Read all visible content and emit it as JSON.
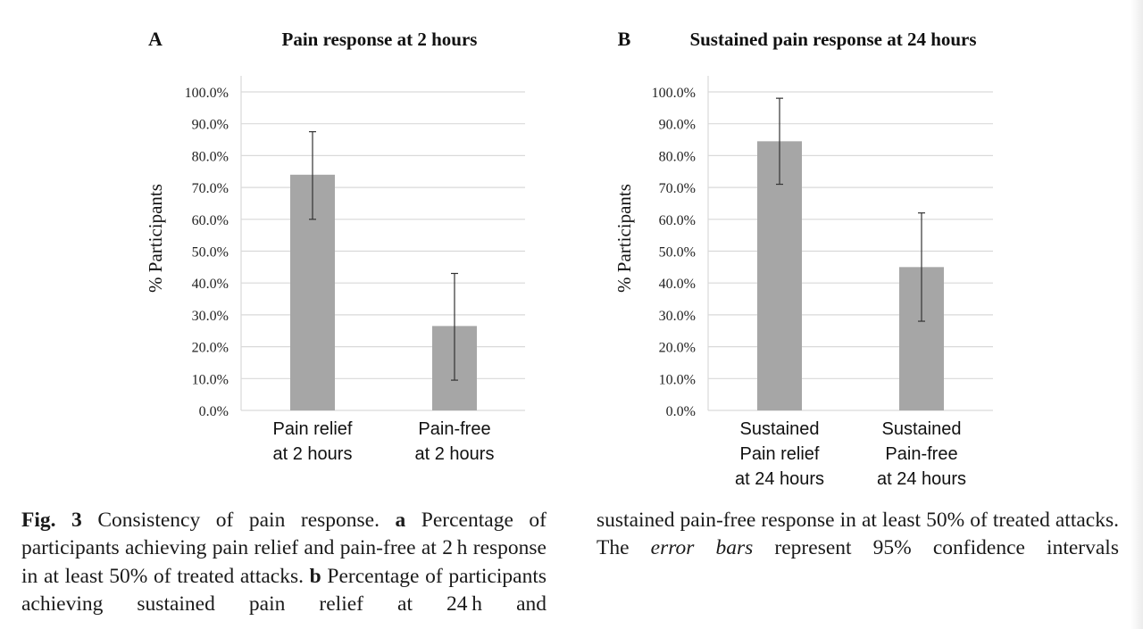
{
  "chart_data": [
    {
      "type": "bar",
      "panel_letter": "A",
      "title": "Pain response at 2 hours",
      "ylabel": "% Participants",
      "xlabel": "",
      "ylim": [
        0,
        100
      ],
      "yticks": [
        "0.0%",
        "10.0%",
        "20.0%",
        "30.0%",
        "40.0%",
        "50.0%",
        "60.0%",
        "70.0%",
        "80.0%",
        "90.0%",
        "100.0%"
      ],
      "grid": true,
      "categories": [
        [
          "Pain relief",
          "at 2 hours"
        ],
        [
          "Pain-free",
          "at 2 hours"
        ]
      ],
      "values": [
        74.0,
        26.5
      ],
      "error_low": [
        60.0,
        9.5
      ],
      "error_high": [
        87.5,
        43.0
      ],
      "bar_color": "#a6a6a6"
    },
    {
      "type": "bar",
      "panel_letter": "B",
      "title": "Sustained pain response at 24 hours",
      "ylabel": "% Participants",
      "xlabel": "",
      "ylim": [
        0,
        100
      ],
      "yticks": [
        "0.0%",
        "10.0%",
        "20.0%",
        "30.0%",
        "40.0%",
        "50.0%",
        "60.0%",
        "70.0%",
        "80.0%",
        "90.0%",
        "100.0%"
      ],
      "grid": true,
      "categories": [
        [
          "Sustained",
          "Pain relief",
          "at 24 hours"
        ],
        [
          "Sustained",
          "Pain-free",
          "at 24 hours"
        ]
      ],
      "values": [
        84.5,
        45.0
      ],
      "error_low": [
        71.0,
        28.0
      ],
      "error_high": [
        98.0,
        62.0
      ],
      "bar_color": "#a6a6a6"
    }
  ],
  "caption": {
    "fig_label": "Fig. 3",
    "left_text_1": " Consistency of pain response. ",
    "part_a": "a",
    "left_text_2": " Percentage of participants achieving pain relief and pain-free at 2 h response in at least 50% of treated attacks. ",
    "part_b": "b",
    "left_text_3": " Percentage of participants achieving sustained pain relief at 24 h and",
    "right_text_1": "sustained pain-free response in at least 50% of treated attacks. The ",
    "right_italic": "error bars",
    "right_text_2": " represent 95% confidence intervals"
  }
}
